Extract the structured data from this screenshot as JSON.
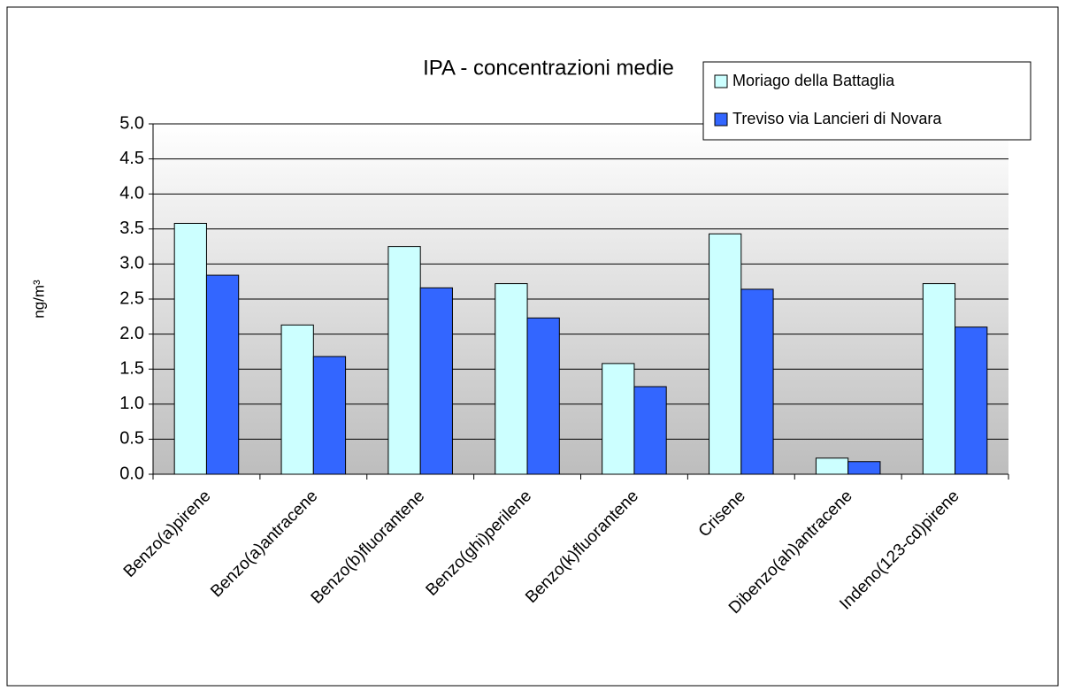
{
  "chart_data": {
    "type": "bar",
    "title": "IPA - concentrazioni medie",
    "y_label": "ng/m³",
    "categories": [
      "Benzo(a)pirene",
      "Benzo(a)antracene",
      "Benzo(b)fluorantene",
      "Benzo(ghi)perilene",
      "Benzo(k)fluorantene",
      "Crisene",
      "Dibenzo(ah)antracene",
      "Indeno(123-cd)pirene"
    ],
    "series": [
      {
        "name": "Moriago della Battaglia",
        "color": "#ccffff",
        "values": [
          3.58,
          2.13,
          3.25,
          2.72,
          1.58,
          3.43,
          0.23,
          2.72
        ]
      },
      {
        "name": "Treviso via Lancieri di Novara",
        "color": "#3366ff",
        "values": [
          2.84,
          1.68,
          2.66,
          2.23,
          1.25,
          2.64,
          0.18,
          2.1
        ]
      }
    ],
    "ylim": [
      0,
      5
    ],
    "yticks": [
      {
        "value": 0,
        "label": "0.0"
      },
      0.5,
      {
        "value": 1,
        "label": "1.0"
      },
      1.5,
      {
        "value": 2,
        "label": "2.0"
      },
      2.5,
      {
        "value": 3,
        "label": "3.0"
      },
      3.5,
      {
        "value": 4,
        "label": "4.0"
      },
      4.5,
      {
        "value": 5,
        "label": "5.0"
      }
    ],
    "grid": true,
    "legend": "top-right"
  }
}
